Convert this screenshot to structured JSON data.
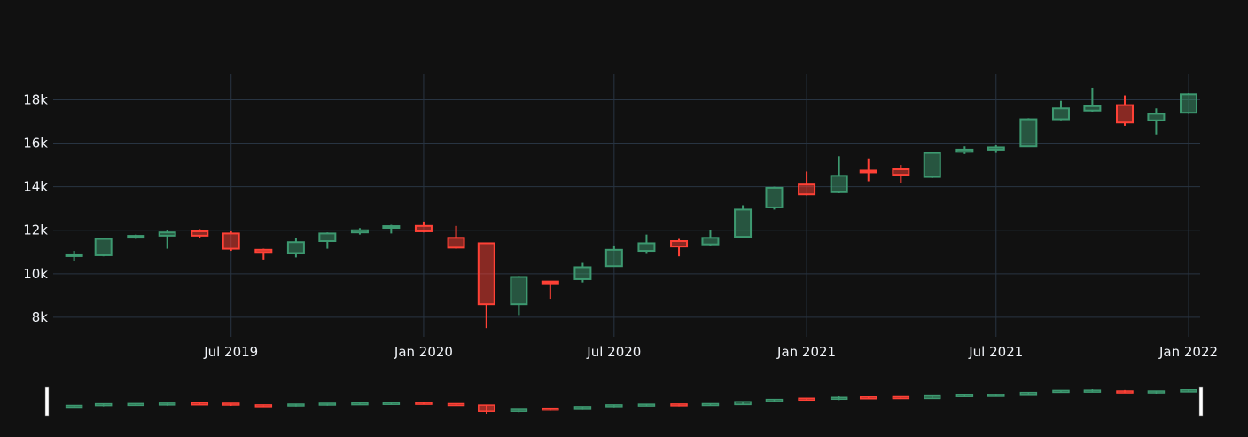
{
  "chart_data": {
    "type": "candlestick",
    "title": "",
    "xlabel": "",
    "ylabel": "",
    "ylim": [
      7100,
      19200
    ],
    "grid": true,
    "rangeslider": true,
    "colors": {
      "background": "#111111",
      "grid": "#283442",
      "increasing": "#3d9970",
      "decreasing": "#ff4136",
      "tick_text": "#f2f5fa"
    },
    "x_ticks": [
      {
        "label": "Jul 2019",
        "date": "2019-07-01"
      },
      {
        "label": "Jan 2020",
        "date": "2020-01-01"
      },
      {
        "label": "Jul 2020",
        "date": "2020-07-01"
      },
      {
        "label": "Jan 2021",
        "date": "2021-01-01"
      },
      {
        "label": "Jul 2021",
        "date": "2021-07-01"
      },
      {
        "label": "Jan 2022",
        "date": "2022-01-01"
      }
    ],
    "y_ticks": [
      {
        "label": "8k",
        "value": 8000
      },
      {
        "label": "10k",
        "value": 10000
      },
      {
        "label": "12k",
        "value": 12000
      },
      {
        "label": "14k",
        "value": 14000
      },
      {
        "label": "16k",
        "value": 16000
      },
      {
        "label": "18k",
        "value": 18000
      }
    ],
    "candles": [
      {
        "date": "2019-02-01",
        "open": 10800,
        "high": 11050,
        "low": 10600,
        "close": 10850
      },
      {
        "date": "2019-03-01",
        "open": 10850,
        "high": 11650,
        "low": 10800,
        "close": 11600
      },
      {
        "date": "2019-04-01",
        "open": 11650,
        "high": 11800,
        "low": 11600,
        "close": 11700
      },
      {
        "date": "2019-05-01",
        "open": 11750,
        "high": 12000,
        "low": 11150,
        "close": 11900
      },
      {
        "date": "2019-06-01",
        "open": 11950,
        "high": 12050,
        "low": 11650,
        "close": 11750
      },
      {
        "date": "2019-07-01",
        "open": 11850,
        "high": 11950,
        "low": 11050,
        "close": 11150
      },
      {
        "date": "2019-08-01",
        "open": 11100,
        "high": 11150,
        "low": 10650,
        "close": 11000
      },
      {
        "date": "2019-09-01",
        "open": 10950,
        "high": 11650,
        "low": 10750,
        "close": 11450
      },
      {
        "date": "2019-10-01",
        "open": 11500,
        "high": 11900,
        "low": 11150,
        "close": 11850
      },
      {
        "date": "2019-11-01",
        "open": 11900,
        "high": 12100,
        "low": 11800,
        "close": 12000
      },
      {
        "date": "2019-12-01",
        "open": 12100,
        "high": 12250,
        "low": 11850,
        "close": 12150
      },
      {
        "date": "2020-01-01",
        "open": 12200,
        "high": 12400,
        "low": 11900,
        "close": 11950
      },
      {
        "date": "2020-02-01",
        "open": 11650,
        "high": 12200,
        "low": 11150,
        "close": 11200
      },
      {
        "date": "2020-03-01",
        "open": 11400,
        "high": 11400,
        "low": 7500,
        "close": 8600
      },
      {
        "date": "2020-04-01",
        "open": 8600,
        "high": 9900,
        "low": 8100,
        "close": 9850
      },
      {
        "date": "2020-05-01",
        "open": 9600,
        "high": 9650,
        "low": 8850,
        "close": 9550
      },
      {
        "date": "2020-06-01",
        "open": 9750,
        "high": 10500,
        "low": 9600,
        "close": 10300
      },
      {
        "date": "2020-07-01",
        "open": 10350,
        "high": 11300,
        "low": 10350,
        "close": 11100
      },
      {
        "date": "2020-08-01",
        "open": 11050,
        "high": 11800,
        "low": 10950,
        "close": 11400
      },
      {
        "date": "2020-09-01",
        "open": 11500,
        "high": 11600,
        "low": 10800,
        "close": 11250
      },
      {
        "date": "2020-10-01",
        "open": 11350,
        "high": 12000,
        "low": 11300,
        "close": 11650
      },
      {
        "date": "2020-11-01",
        "open": 11700,
        "high": 13150,
        "low": 11650,
        "close": 12950
      },
      {
        "date": "2020-12-01",
        "open": 13050,
        "high": 14000,
        "low": 12950,
        "close": 13950
      },
      {
        "date": "2021-01-01",
        "open": 14100,
        "high": 14700,
        "low": 13600,
        "close": 13650
      },
      {
        "date": "2021-02-01",
        "open": 13750,
        "high": 15400,
        "low": 13700,
        "close": 14500
      },
      {
        "date": "2021-03-01",
        "open": 14700,
        "high": 15300,
        "low": 14250,
        "close": 14650
      },
      {
        "date": "2021-04-01",
        "open": 14800,
        "high": 15000,
        "low": 14150,
        "close": 14550
      },
      {
        "date": "2021-05-01",
        "open": 14450,
        "high": 15600,
        "low": 14400,
        "close": 15550
      },
      {
        "date": "2021-06-01",
        "open": 15600,
        "high": 15850,
        "low": 15500,
        "close": 15700
      },
      {
        "date": "2021-07-01",
        "open": 15700,
        "high": 15900,
        "low": 15550,
        "close": 15800
      },
      {
        "date": "2021-08-01",
        "open": 15850,
        "high": 17150,
        "low": 15850,
        "close": 17100
      },
      {
        "date": "2021-09-01",
        "open": 17100,
        "high": 17950,
        "low": 17050,
        "close": 17600
      },
      {
        "date": "2021-10-01",
        "open": 17500,
        "high": 18550,
        "low": 17450,
        "close": 17700
      },
      {
        "date": "2021-11-01",
        "open": 17750,
        "high": 18200,
        "low": 16800,
        "close": 16950
      },
      {
        "date": "2021-12-01",
        "open": 17050,
        "high": 17600,
        "low": 16400,
        "close": 17350
      },
      {
        "date": "2022-01-01",
        "open": 17400,
        "high": 18300,
        "low": 17350,
        "close": 18250
      }
    ]
  }
}
